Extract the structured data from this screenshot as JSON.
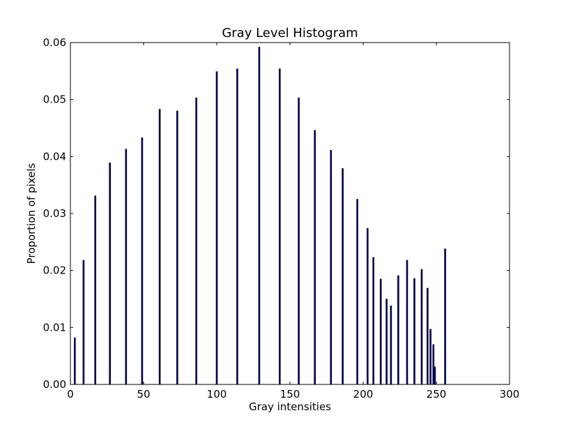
{
  "chart_data": {
    "type": "bar",
    "title": "Gray Level Histogram",
    "xlabel": "Gray intensities",
    "ylabel": "Proportion of pixels",
    "xlim": [
      0,
      300
    ],
    "ylim": [
      0,
      0.06
    ],
    "xticks": [
      0,
      50,
      100,
      150,
      200,
      250,
      300
    ],
    "xtick_labels": [
      "0",
      "50",
      "100",
      "150",
      "200",
      "250",
      "300"
    ],
    "yticks": [
      0,
      0.01,
      0.02,
      0.03,
      0.04,
      0.05,
      0.06
    ],
    "ytick_labels": [
      "0.00",
      "0.01",
      "0.02",
      "0.03",
      "0.04",
      "0.05",
      "0.06"
    ],
    "grid": false,
    "bar_color": "#000080",
    "bar_edge_color": "#000000",
    "x": [
      3,
      9,
      17,
      27,
      38,
      49,
      61,
      73,
      86,
      100,
      114,
      129,
      143,
      156,
      167,
      178,
      186,
      196,
      203,
      207,
      212,
      216,
      219,
      224,
      230,
      235,
      240,
      244,
      246,
      248,
      249,
      256
    ],
    "values": [
      0.0082,
      0.0218,
      0.0331,
      0.0389,
      0.0413,
      0.0433,
      0.0483,
      0.048,
      0.0503,
      0.0549,
      0.0554,
      0.0592,
      0.0554,
      0.0503,
      0.0446,
      0.0411,
      0.0379,
      0.0325,
      0.0274,
      0.0223,
      0.0185,
      0.015,
      0.0138,
      0.0191,
      0.0218,
      0.0186,
      0.0202,
      0.0169,
      0.0097,
      0.007,
      0.0031,
      0.0238
    ]
  }
}
